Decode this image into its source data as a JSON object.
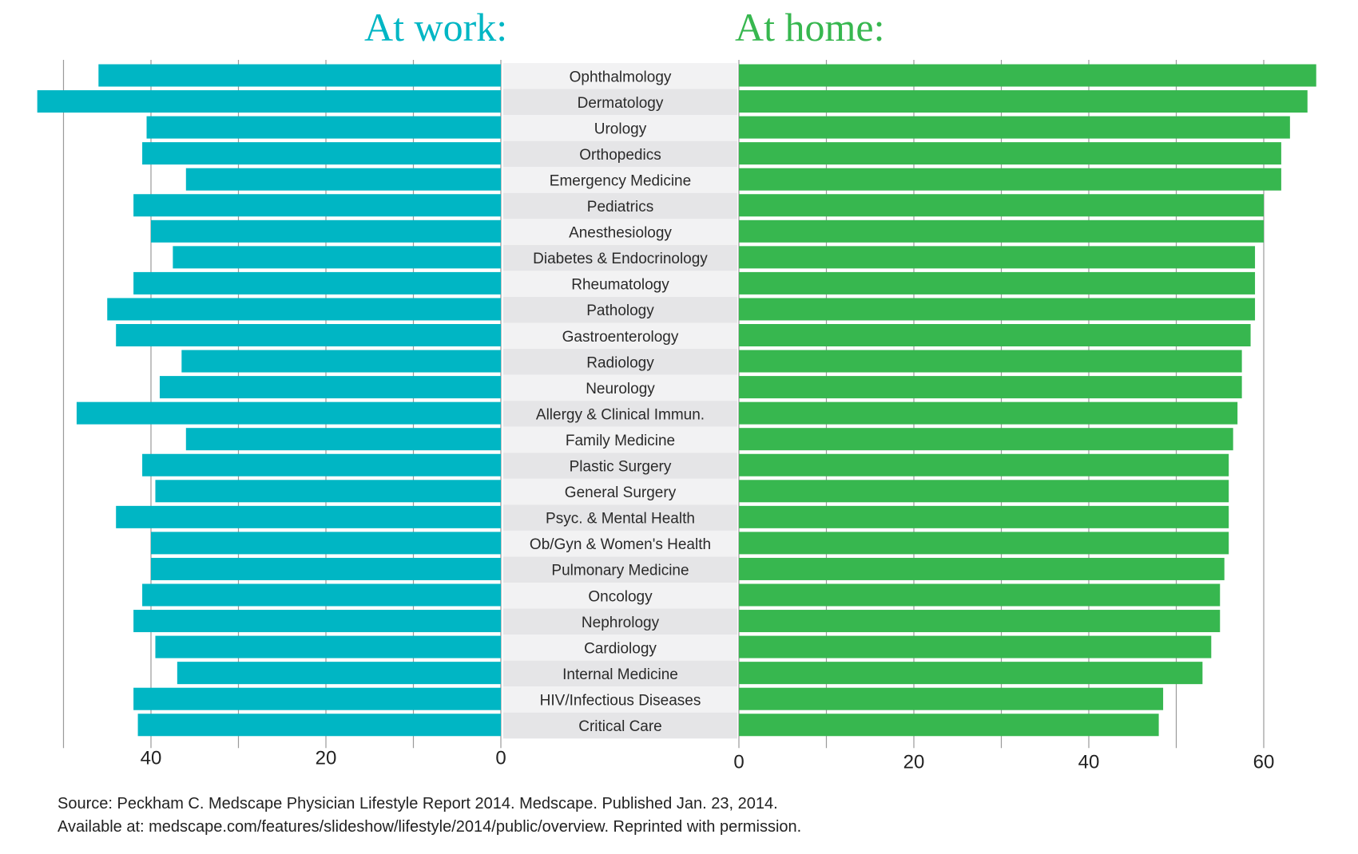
{
  "chart_data": {
    "type": "bar",
    "panels": [
      {
        "name": "At work:",
        "direction": "left",
        "xlim": [
          0,
          50
        ],
        "ticks": [
          40,
          20,
          0
        ],
        "color": "#00b6c4"
      },
      {
        "name": "At home:",
        "direction": "right",
        "xlim": [
          0,
          65
        ],
        "ticks": [
          0,
          20,
          40,
          60
        ],
        "color": "#37b74f"
      }
    ],
    "categories": [
      "Ophthalmology",
      "Dermatology",
      "Urology",
      "Orthopedics",
      "Emergency Medicine",
      "Pediatrics",
      "Anesthesiology",
      "Diabetes & Endocrinology",
      "Rheumatology",
      "Pathology",
      "Gastroenterology",
      "Radiology",
      "Neurology",
      "Allergy & Clinical Immun.",
      "Family Medicine",
      "Plastic Surgery",
      "General Surgery",
      "Psyc. & Mental Health",
      "Ob/Gyn & Women's Health",
      "Pulmonary Medicine",
      "Oncology",
      "Nephrology",
      "Cardiology",
      "Internal Medicine",
      "HIV/Infectious Diseases",
      "Critical Care"
    ],
    "series": [
      {
        "name": "At work:",
        "values": [
          46,
          53,
          40.5,
          41,
          36,
          42,
          40,
          37.5,
          42,
          45,
          44,
          36.5,
          39,
          48.5,
          36,
          41,
          39.5,
          44,
          40,
          40,
          41,
          42,
          39.5,
          37,
          42,
          41.5
        ]
      },
      {
        "name": "At home:",
        "values": [
          66,
          65,
          63,
          62,
          62,
          60,
          60,
          59,
          59,
          59,
          58.5,
          57.5,
          57.5,
          57,
          56.5,
          56,
          56,
          56,
          56,
          55.5,
          55,
          55,
          54,
          53,
          48.5,
          48
        ]
      }
    ],
    "grid": true,
    "legend": "none"
  },
  "source": {
    "line1": "Source: Peckham C. Medscape Physician Lifestyle Report 2014. Medscape. Published Jan. 23, 2014.",
    "line2": "Available at: medscape.com/features/slideshow/lifestyle/2014/public/overview. Reprinted with permission."
  }
}
